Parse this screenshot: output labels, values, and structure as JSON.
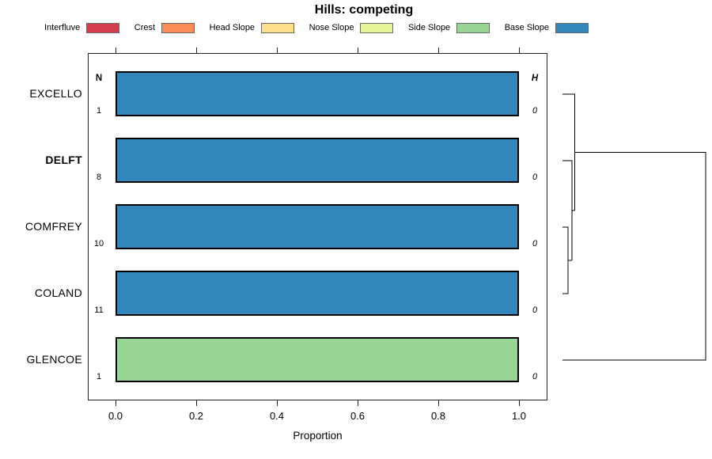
{
  "title": "Hills: competing",
  "legend": {
    "items": [
      {
        "label": "Interfluve",
        "color": "#D53E4F"
      },
      {
        "label": "Crest",
        "color": "#FC8D59"
      },
      {
        "label": "Head Slope",
        "color": "#FEE08B"
      },
      {
        "label": "Nose Slope",
        "color": "#E6F598"
      },
      {
        "label": "Side Slope",
        "color": "#99D594"
      },
      {
        "label": "Base Slope",
        "color": "#3288BD"
      }
    ]
  },
  "columns": {
    "n_header": "N",
    "h_header": "H"
  },
  "rows": [
    {
      "label": "EXCELLO",
      "weight": "normal",
      "n": "1",
      "h": "0",
      "segments": [
        {
          "class": "Base Slope",
          "color": "#3288BD",
          "value": 1.0
        }
      ]
    },
    {
      "label": "DELFT",
      "weight": "bold",
      "n": "8",
      "h": "0",
      "segments": [
        {
          "class": "Base Slope",
          "color": "#3288BD",
          "value": 1.0
        }
      ]
    },
    {
      "label": "COMFREY",
      "weight": "normal",
      "n": "10",
      "h": "0",
      "segments": [
        {
          "class": "Base Slope",
          "color": "#3288BD",
          "value": 1.0
        }
      ]
    },
    {
      "label": "COLAND",
      "weight": "normal",
      "n": "11",
      "h": "0",
      "segments": [
        {
          "class": "Base Slope",
          "color": "#3288BD",
          "value": 1.0
        }
      ]
    },
    {
      "label": "GLENCOE",
      "weight": "normal",
      "n": "1",
      "h": "0",
      "segments": [
        {
          "class": "Side Slope",
          "color": "#99D594",
          "value": 1.0
        }
      ]
    }
  ],
  "x_axis": {
    "ticks": [
      "0.0",
      "0.2",
      "0.4",
      "0.6",
      "0.8",
      "1.0"
    ],
    "label": "Proportion"
  },
  "chart_data": {
    "type": "bar",
    "orientation": "horizontal",
    "stacked": true,
    "title": "Hills: competing",
    "categories": [
      "EXCELLO",
      "DELFT",
      "COMFREY",
      "COLAND",
      "GLENCOE"
    ],
    "emphasized_category": "DELFT",
    "series": [
      {
        "name": "Interfluve",
        "color": "#D53E4F",
        "values": [
          0,
          0,
          0,
          0,
          0
        ]
      },
      {
        "name": "Crest",
        "color": "#FC8D59",
        "values": [
          0,
          0,
          0,
          0,
          0
        ]
      },
      {
        "name": "Head Slope",
        "color": "#FEE08B",
        "values": [
          0,
          0,
          0,
          0,
          0
        ]
      },
      {
        "name": "Nose Slope",
        "color": "#E6F598",
        "values": [
          0,
          0,
          0,
          0,
          0
        ]
      },
      {
        "name": "Side Slope",
        "color": "#99D594",
        "values": [
          0,
          0,
          0,
          0,
          1.0
        ]
      },
      {
        "name": "Base Slope",
        "color": "#3288BD",
        "values": [
          1.0,
          1.0,
          1.0,
          1.0,
          0
        ]
      }
    ],
    "n_values": [
      1,
      8,
      10,
      11,
      1
    ],
    "h_values": [
      0,
      0,
      0,
      0,
      0
    ],
    "xlabel": "Proportion",
    "ylabel": "",
    "xlim": [
      0,
      1
    ],
    "xticks": [
      0.0,
      0.2,
      0.4,
      0.6,
      0.8,
      1.0
    ],
    "legend_position": "top",
    "grid": false,
    "right_panel": {
      "type": "dendrogram",
      "orientation": "root-right",
      "leaves": [
        "EXCELLO",
        "DELFT",
        "COMFREY",
        "COLAND",
        "GLENCOE"
      ],
      "merges": [
        {
          "join": [
            "COMFREY",
            "COLAND"
          ],
          "height": "near 0"
        },
        {
          "join": [
            "DELFT",
            "(COMFREY,COLAND)"
          ],
          "height": "near 0"
        },
        {
          "join": [
            "EXCELLO",
            "(DELFT,COMFREY,COLAND)"
          ],
          "height": "near 0"
        },
        {
          "join": [
            "(EXCELLO,DELFT,COMFREY,COLAND)",
            "GLENCOE"
          ],
          "height": "max"
        }
      ]
    }
  }
}
